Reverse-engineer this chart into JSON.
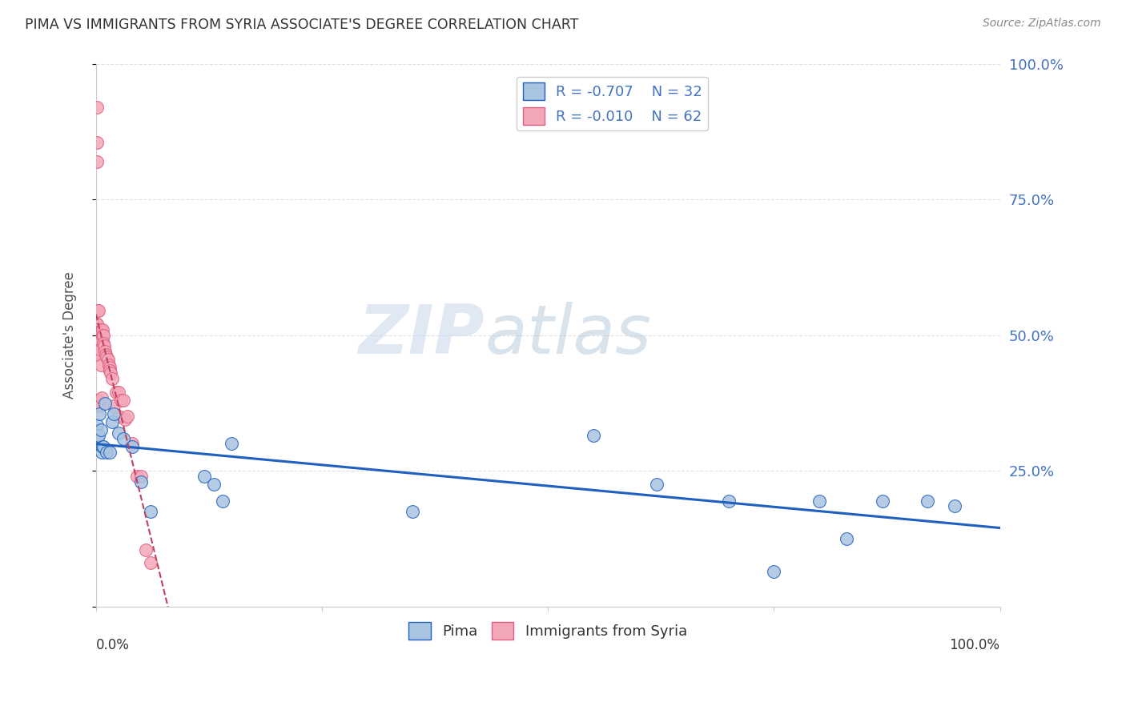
{
  "title": "PIMA VS IMMIGRANTS FROM SYRIA ASSOCIATE'S DEGREE CORRELATION CHART",
  "source": "Source: ZipAtlas.com",
  "ylabel": "Associate's Degree",
  "yticks": [
    0.0,
    0.25,
    0.5,
    0.75,
    1.0
  ],
  "ytick_labels": [
    "",
    "25.0%",
    "50.0%",
    "75.0%",
    "100.0%"
  ],
  "legend_blue_r": "R = -0.707",
  "legend_blue_n": "N = 32",
  "legend_pink_r": "R = -0.010",
  "legend_pink_n": "N = 62",
  "watermark_left": "ZIP",
  "watermark_right": "atlas",
  "blue_color": "#a8c4e0",
  "pink_color": "#f4a7b9",
  "blue_line_color": "#2060c0",
  "pink_line_color": "#e06080",
  "pink_line_color2": "#c04060",
  "background_color": "#ffffff",
  "grid_color": "#e0e0e0",
  "pima_x": [
    0.001,
    0.002,
    0.003,
    0.004,
    0.005,
    0.006,
    0.007,
    0.008,
    0.01,
    0.012,
    0.015,
    0.018,
    0.02,
    0.025,
    0.03,
    0.04,
    0.05,
    0.06,
    0.12,
    0.13,
    0.14,
    0.15,
    0.35,
    0.55,
    0.62,
    0.7,
    0.75,
    0.8,
    0.83,
    0.87,
    0.92,
    0.95
  ],
  "pima_y": [
    0.335,
    0.315,
    0.315,
    0.355,
    0.325,
    0.285,
    0.295,
    0.295,
    0.375,
    0.285,
    0.285,
    0.34,
    0.355,
    0.32,
    0.31,
    0.295,
    0.23,
    0.175,
    0.24,
    0.225,
    0.195,
    0.3,
    0.175,
    0.315,
    0.225,
    0.195,
    0.065,
    0.195,
    0.125,
    0.195,
    0.195,
    0.185
  ],
  "syria_x": [
    0.001,
    0.001,
    0.001,
    0.001,
    0.001,
    0.001,
    0.001,
    0.001,
    0.001,
    0.001,
    0.001,
    0.001,
    0.001,
    0.001,
    0.001,
    0.002,
    0.002,
    0.002,
    0.002,
    0.002,
    0.002,
    0.003,
    0.003,
    0.003,
    0.003,
    0.004,
    0.004,
    0.004,
    0.004,
    0.005,
    0.005,
    0.005,
    0.006,
    0.006,
    0.006,
    0.007,
    0.007,
    0.008,
    0.008,
    0.009,
    0.01,
    0.011,
    0.012,
    0.013,
    0.014,
    0.015,
    0.015,
    0.016,
    0.018,
    0.02,
    0.022,
    0.025,
    0.025,
    0.028,
    0.03,
    0.032,
    0.035,
    0.04,
    0.045,
    0.05,
    0.055,
    0.06
  ],
  "syria_y": [
    0.92,
    0.855,
    0.82,
    0.52,
    0.52,
    0.51,
    0.505,
    0.5,
    0.495,
    0.49,
    0.485,
    0.48,
    0.475,
    0.47,
    0.465,
    0.545,
    0.5,
    0.495,
    0.49,
    0.48,
    0.38,
    0.545,
    0.5,
    0.495,
    0.49,
    0.505,
    0.485,
    0.475,
    0.37,
    0.5,
    0.49,
    0.445,
    0.51,
    0.505,
    0.385,
    0.51,
    0.5,
    0.5,
    0.485,
    0.48,
    0.47,
    0.465,
    0.46,
    0.455,
    0.445,
    0.44,
    0.435,
    0.43,
    0.42,
    0.37,
    0.395,
    0.395,
    0.35,
    0.38,
    0.38,
    0.345,
    0.35,
    0.3,
    0.24,
    0.24,
    0.105,
    0.08
  ]
}
